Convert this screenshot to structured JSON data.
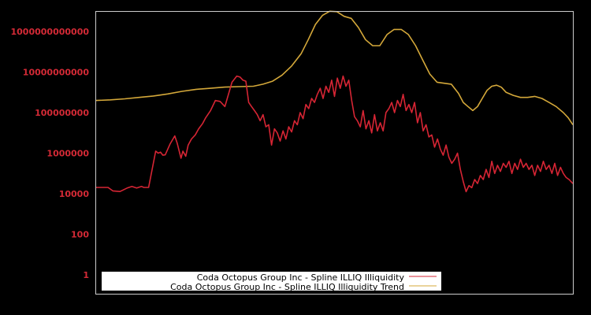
{
  "chart_data": {
    "type": "line",
    "title": "",
    "xlabel": "",
    "ylabel": "",
    "yscale": "log",
    "ylim_log10": [
      -0.35,
      13.0
    ],
    "y_ticks": [
      {
        "label": "1000000000000",
        "log10": 12
      },
      {
        "label": "10000000000",
        "log10": 10
      },
      {
        "label": "100000000",
        "log10": 8
      },
      {
        "label": "1000000",
        "log10": 6
      },
      {
        "label": "10000",
        "log10": 4
      },
      {
        "label": "100",
        "log10": 2
      },
      {
        "label": "1",
        "log10": 0
      }
    ],
    "grid": false,
    "x_ticks": [],
    "x_range": [
      0,
      100
    ],
    "legend_position": "bottom-inside",
    "colors": {
      "background": "#000000",
      "frame": "#cccccc",
      "tick_label": "#d42a36",
      "illiquidity": "#d62534",
      "trend": "#d4a83a",
      "legend_bg": "#ffffff"
    },
    "series": [
      {
        "name": "Coda Octopus Group Inc - Spline ILLIQ Illiquidity",
        "color": "#d62534",
        "x_pct": [
          0,
          2.5,
          3.5,
          5,
          6.5,
          7.5,
          8.5,
          9.5,
          10,
          11,
          12.5,
          13,
          13.5,
          14,
          14.5,
          15.5,
          16.5,
          17,
          17.8,
          18.2,
          18.8,
          19.3,
          20,
          20.8,
          21.5,
          22.3,
          23,
          24,
          25,
          26,
          27,
          28.5,
          29.5,
          30.2,
          30.8,
          31.4,
          32,
          32.6,
          33.2,
          33.8,
          34.4,
          35,
          35.6,
          36.2,
          36.8,
          37.4,
          38,
          38.6,
          39.2,
          39.8,
          40.4,
          41,
          41.6,
          42.2,
          42.8,
          43.4,
          44,
          44.6,
          45.2,
          45.8,
          46.4,
          47,
          47.6,
          48.2,
          48.8,
          49.4,
          50,
          50.6,
          51.2,
          51.8,
          52.4,
          53,
          53.6,
          54.2,
          54.8,
          55.4,
          56,
          56.6,
          57.2,
          57.8,
          58.4,
          59,
          59.6,
          60.2,
          60.8,
          61.4,
          62,
          62.6,
          63.2,
          63.8,
          64.4,
          65,
          65.6,
          66.2,
          66.8,
          67.4,
          68,
          68.6,
          69.2,
          69.8,
          70.4,
          71,
          71.6,
          72.2,
          72.8,
          73.4,
          74,
          74.6,
          75.2,
          75.8,
          76.4,
          77,
          77.6,
          78.2,
          78.8,
          79.4,
          80,
          80.6,
          81.2,
          81.8,
          82.4,
          83,
          83.6,
          84.2,
          84.8,
          85.4,
          86,
          86.6,
          87.2,
          87.8,
          88.4,
          89,
          89.6,
          90.2,
          90.8,
          91.4,
          92,
          92.6,
          93.2,
          93.8,
          94.4,
          95,
          95.6,
          96.2,
          96.8,
          97.4,
          98,
          98.6,
          99.2,
          100
        ],
        "log10_values": [
          4.31,
          4.31,
          4.14,
          4.11,
          4.28,
          4.36,
          4.28,
          4.36,
          4.31,
          4.31,
          6.1,
          6.0,
          6.05,
          5.9,
          5.92,
          6.45,
          6.85,
          6.5,
          5.75,
          6.1,
          5.85,
          6.4,
          6.7,
          6.9,
          7.2,
          7.45,
          7.75,
          8.1,
          8.6,
          8.55,
          8.3,
          9.5,
          9.8,
          9.75,
          9.6,
          9.55,
          8.5,
          8.3,
          8.1,
          7.9,
          7.6,
          7.9,
          7.3,
          7.4,
          6.4,
          7.2,
          7.0,
          6.6,
          7.1,
          6.7,
          7.3,
          7.05,
          7.6,
          7.4,
          8.0,
          7.7,
          8.4,
          8.2,
          8.7,
          8.5,
          8.9,
          9.2,
          8.7,
          9.3,
          9.0,
          9.6,
          8.8,
          9.7,
          9.2,
          9.8,
          9.3,
          9.6,
          8.6,
          7.8,
          7.6,
          7.3,
          8.1,
          7.2,
          7.6,
          7.0,
          7.9,
          7.1,
          7.5,
          7.1,
          8.0,
          8.2,
          8.5,
          8.0,
          8.6,
          8.3,
          8.9,
          8.1,
          8.4,
          8.0,
          8.5,
          7.5,
          8.0,
          7.1,
          7.4,
          6.8,
          6.9,
          6.3,
          6.7,
          6.2,
          5.9,
          6.4,
          5.8,
          5.5,
          5.7,
          6.0,
          5.2,
          4.6,
          4.1,
          4.4,
          4.3,
          4.7,
          4.5,
          4.9,
          4.7,
          5.2,
          4.8,
          5.6,
          5.0,
          5.4,
          5.1,
          5.5,
          5.3,
          5.6,
          5.0,
          5.5,
          5.2,
          5.7,
          5.3,
          5.5,
          5.2,
          5.4,
          4.9,
          5.4,
          5.1,
          5.6,
          5.2,
          5.4,
          5.0,
          5.5,
          4.9,
          5.3,
          5.0,
          4.8,
          4.7,
          4.5,
          4.5,
          4.1
        ]
      },
      {
        "name": "Coda Octopus Group Inc - Spline ILLIQ Illiquidity Trend",
        "color": "#d4a83a",
        "x_pct": [
          0,
          3,
          6,
          9,
          12,
          15,
          18,
          21,
          24,
          27,
          30,
          33,
          35,
          37,
          39,
          41,
          43,
          44.5,
          46,
          47.5,
          49,
          50.5,
          52,
          53.5,
          55,
          56.5,
          58,
          59.5,
          61,
          62.5,
          64,
          65.5,
          67,
          68.5,
          70,
          71.5,
          73,
          74.5,
          76,
          77,
          78,
          79,
          80,
          81,
          82,
          83,
          84,
          85,
          86,
          87.5,
          89,
          90.5,
          92,
          93.5,
          95,
          96.5,
          98,
          99,
          100
        ],
        "log10_values": [
          8.6,
          8.63,
          8.68,
          8.75,
          8.82,
          8.92,
          9.05,
          9.15,
          9.2,
          9.26,
          9.28,
          9.3,
          9.4,
          9.55,
          9.85,
          10.3,
          10.9,
          11.6,
          12.35,
          12.8,
          13.0,
          12.98,
          12.75,
          12.65,
          12.2,
          11.6,
          11.3,
          11.3,
          11.85,
          12.1,
          12.1,
          11.85,
          11.3,
          10.6,
          9.9,
          9.5,
          9.45,
          9.4,
          8.95,
          8.5,
          8.3,
          8.1,
          8.3,
          8.7,
          9.1,
          9.3,
          9.35,
          9.25,
          9.0,
          8.85,
          8.75,
          8.75,
          8.8,
          8.7,
          8.5,
          8.3,
          8.0,
          7.75,
          7.4
        ]
      }
    ],
    "legend": {
      "entries": [
        {
          "label": "Coda Octopus Group Inc - Spline ILLIQ Illiquidity",
          "color": "#d62534"
        },
        {
          "label": "Coda Octopus Group Inc - Spline ILLIQ Illiquidity Trend",
          "color": "#d4a83a"
        }
      ]
    }
  }
}
